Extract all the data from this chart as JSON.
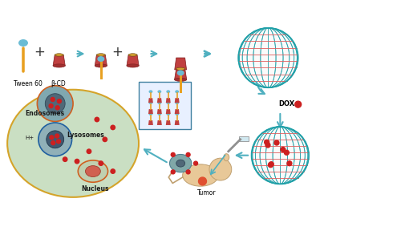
{
  "background_color": "#ffffff",
  "fig_width": 5.0,
  "fig_height": 2.98,
  "labels": {
    "tween60": "Tween 60",
    "betaCD": "β-CD",
    "dox": "DOX",
    "endosomes": "Endosomes",
    "lysosomes": "Lysosomes",
    "nucleus": "Nucleus",
    "tumor": "Tumor",
    "hplus": "H+"
  },
  "colors": {
    "tween_stem": "#E8A020",
    "tween_head": "#6BBCD4",
    "cd_body": "#C04040",
    "cd_inner": "#D4A030",
    "vesicle_outer": "#20A0A8",
    "vesicle_inner": "#E06060",
    "dox_dot": "#CC2020",
    "cell_fill": "#C8DEC0",
    "cell_border": "#D4A020",
    "endosome_border": "#D06020",
    "lysosome_border": "#2060A0",
    "nucleus_fill": "#A0B8C0",
    "nucleus_border": "#D06020",
    "arrow_color": "#50B0C0",
    "text_color": "#000000",
    "small_cell_fill": "#80A8A8"
  }
}
